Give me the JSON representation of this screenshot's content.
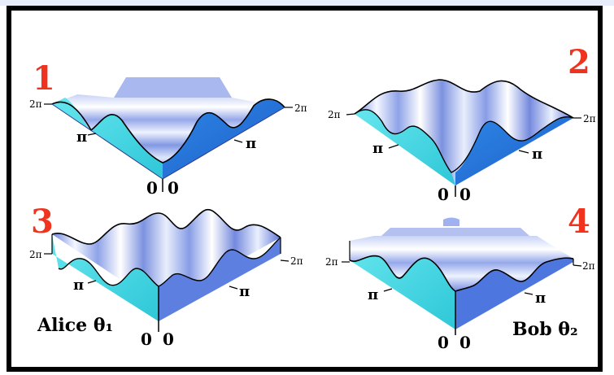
{
  "panels": [
    {
      "number": "1",
      "axis_left": "2π",
      "axis_right": "2π",
      "pi_left": "π",
      "pi_right": "π",
      "zero_left": "0",
      "zero_right": "0"
    },
    {
      "number": "2",
      "axis_left": "2π",
      "axis_right": "2π",
      "pi_left": "π",
      "pi_right": "π",
      "zero_left": "0",
      "zero_right": "0"
    },
    {
      "number": "3",
      "axis_left": "2π",
      "axis_right": "2π",
      "pi_left": "π",
      "pi_right": "π",
      "zero_left": "0",
      "zero_right": "0",
      "caption": "Alice θ₁"
    },
    {
      "number": "4",
      "axis_left": "2π",
      "axis_right": "2π",
      "pi_left": "π",
      "pi_right": "π",
      "zero_left": "0",
      "zero_right": "0",
      "caption": "Bob θ₂"
    }
  ],
  "colors": {
    "panel_number": "#f0331f",
    "left_wall": "#4fe0ea",
    "right_wall": "#2f7be0",
    "ridge": "#5e6fd0",
    "ridge_light": "#eef3ff",
    "stroke": "#000000"
  }
}
